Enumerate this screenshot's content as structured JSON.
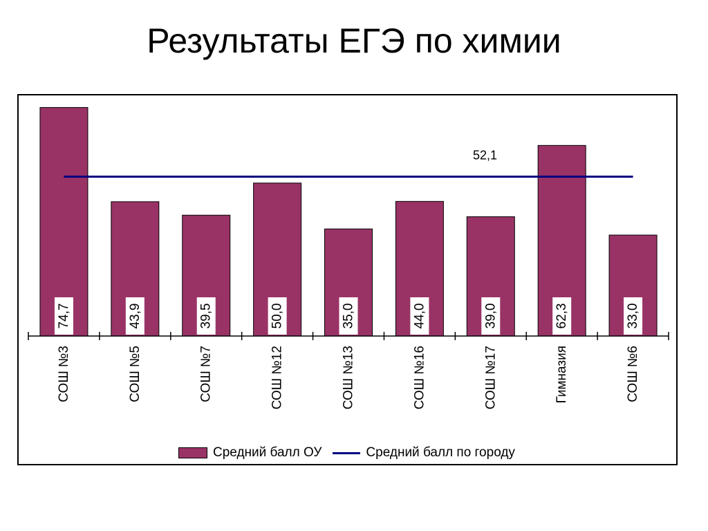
{
  "title": "Результаты ЕГЭ по химии",
  "colors": {
    "bar": "#993366",
    "average_line": "#000080"
  },
  "chart_data": {
    "type": "bar",
    "title": "Результаты ЕГЭ по химии",
    "categories": [
      "СОШ №3",
      "СОШ №5",
      "СОШ №7",
      "СОШ №12",
      "СОШ №13",
      "СОШ №16",
      "СОШ №17",
      "Гимназия",
      "СОШ №6"
    ],
    "series": [
      {
        "name": "Средний балл ОУ",
        "type": "bar",
        "values": [
          74.7,
          43.9,
          39.5,
          50.0,
          35.0,
          44.0,
          39.0,
          62.3,
          33.0
        ],
        "labels": [
          "74,7",
          "43,9",
          "39,5",
          "50,0",
          "35,0",
          "44,0",
          "39,0",
          "62,3",
          "33,0"
        ]
      },
      {
        "name": "Средний балл по городу",
        "type": "line",
        "value": 52.1,
        "label": "52,1"
      }
    ],
    "xlabel": "",
    "ylabel": "",
    "ylim": [
      0,
      80
    ],
    "grid": false,
    "legend": "bottom"
  }
}
